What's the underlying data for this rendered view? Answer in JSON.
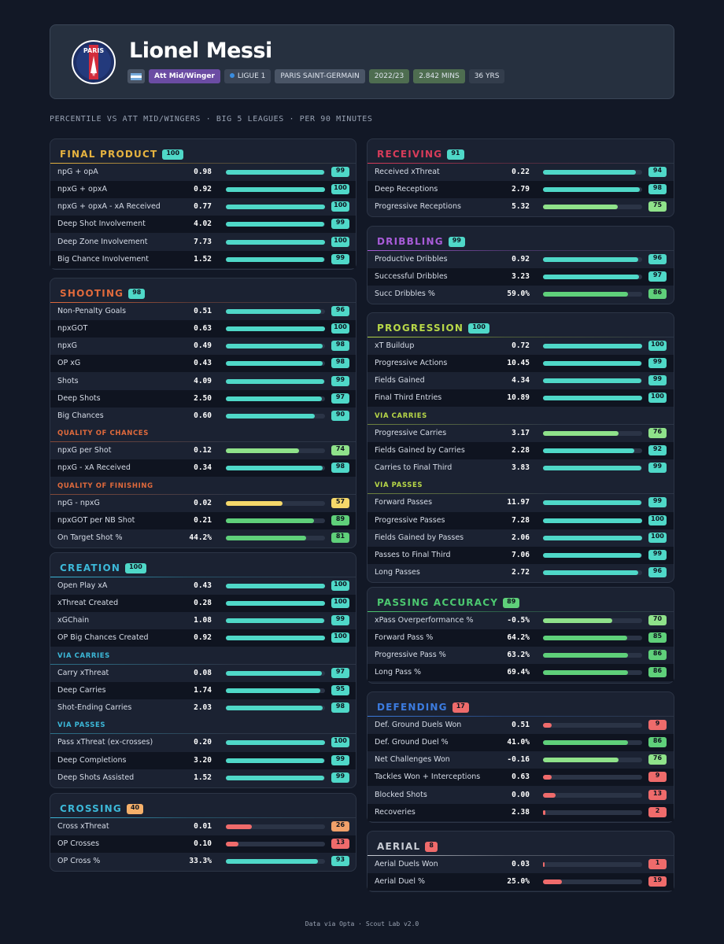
{
  "player": {
    "name": "Lionel Messi",
    "crest_text": "PARIS",
    "crest_sub": "SAINT-GERMAIN",
    "position": "Att Mid/Winger",
    "league": "LIGUE 1",
    "club": "PARIS SAINT-GERMAIN",
    "season": "2022/23",
    "minutes": "2.842 MINS",
    "age": "36 YRS"
  },
  "subtitle": "PERCENTILE VS ATT MID/WINGERS · BIG 5 LEAGUES · PER 90 MINUTES",
  "footer": "Data via Opta · Scout Lab v2.0",
  "colors": {
    "bar_high": "#4fd8c8",
    "bar_good": "#5fd07a",
    "bar_mid_good": "#8fe28a",
    "bar_mid": "#f5d86a",
    "bar_low": "#ef6b6b",
    "page_bg": "#121826",
    "panel_bg": "#1b2232"
  },
  "chart_data": {
    "type": "bar",
    "orientation": "horizontal",
    "title": "Lionel Messi percentile profile",
    "value_unit": "percentile",
    "xlim": [
      0,
      100
    ],
    "sections": [
      {
        "id": "final-product",
        "title": "FINAL PRODUCT",
        "score": 100,
        "color": "#e6b340",
        "rows": [
          {
            "label": "npG + opA",
            "value": "0.98",
            "percentile": 99
          },
          {
            "label": "npxG + opxA",
            "value": "0.92",
            "percentile": 100
          },
          {
            "label": "npxG + opxA - xA Received",
            "value": "0.77",
            "percentile": 100
          },
          {
            "label": "Deep Shot Involvement",
            "value": "4.02",
            "percentile": 99
          },
          {
            "label": "Deep Zone Involvement",
            "value": "7.73",
            "percentile": 100
          },
          {
            "label": "Big Chance Involvement",
            "value": "1.52",
            "percentile": 99
          }
        ]
      },
      {
        "id": "shooting",
        "title": "SHOOTING",
        "score": 98,
        "color": "#e06a3c",
        "rows": [
          {
            "label": "Non-Penalty Goals",
            "value": "0.51",
            "percentile": 96
          },
          {
            "label": "npxGOT",
            "value": "0.63",
            "percentile": 100
          },
          {
            "label": "npxG",
            "value": "0.49",
            "percentile": 98
          },
          {
            "label": "OP xG",
            "value": "0.43",
            "percentile": 98
          },
          {
            "label": "Shots",
            "value": "4.09",
            "percentile": 99
          },
          {
            "label": "Deep Shots",
            "value": "2.50",
            "percentile": 97
          },
          {
            "label": "Big Chances",
            "value": "0.60",
            "percentile": 90
          },
          {
            "subheader": "QUALITY OF CHANCES"
          },
          {
            "label": "npxG per Shot",
            "value": "0.12",
            "percentile": 74
          },
          {
            "label": "npxG - xA Received",
            "value": "0.34",
            "percentile": 98
          },
          {
            "subheader": "QUALITY OF FINISHING"
          },
          {
            "label": "npG - npxG",
            "value": "0.02",
            "percentile": 57
          },
          {
            "label": "npxGOT per NB Shot",
            "value": "0.21",
            "percentile": 89
          },
          {
            "label": "On Target Shot %",
            "value": "44.2%",
            "percentile": 81
          }
        ]
      },
      {
        "id": "creation",
        "title": "CREATION",
        "score": 100,
        "color": "#3cb8d8",
        "rows": [
          {
            "label": "Open Play xA",
            "value": "0.43",
            "percentile": 100
          },
          {
            "label": "xThreat Created",
            "value": "0.28",
            "percentile": 100
          },
          {
            "label": "xGChain",
            "value": "1.08",
            "percentile": 99
          },
          {
            "label": "OP Big Chances Created",
            "value": "0.92",
            "percentile": 100
          },
          {
            "subheader": "VIA CARRIES"
          },
          {
            "label": "Carry xThreat",
            "value": "0.08",
            "percentile": 97
          },
          {
            "label": "Deep Carries",
            "value": "1.74",
            "percentile": 95
          },
          {
            "label": "Shot-Ending Carries",
            "value": "2.03",
            "percentile": 98
          },
          {
            "subheader": "VIA PASSES"
          },
          {
            "label": "Pass xThreat (ex-crosses)",
            "value": "0.20",
            "percentile": 100
          },
          {
            "label": "Deep Completions",
            "value": "3.20",
            "percentile": 99
          },
          {
            "label": "Deep Shots Assisted",
            "value": "1.52",
            "percentile": 99
          }
        ]
      },
      {
        "id": "crossing",
        "title": "CROSSING",
        "score": 40,
        "color": "#3cb8d8",
        "rows": [
          {
            "label": "Cross xThreat",
            "value": "0.01",
            "percentile": 26
          },
          {
            "label": "OP Crosses",
            "value": "0.10",
            "percentile": 13
          },
          {
            "label": "OP Cross %",
            "value": "33.3%",
            "percentile": 93
          }
        ]
      },
      {
        "id": "receiving",
        "title": "RECEIVING",
        "score": 91,
        "color": "#d83c5a",
        "rows": [
          {
            "label": "Received xThreat",
            "value": "0.22",
            "percentile": 94
          },
          {
            "label": "Deep Receptions",
            "value": "2.79",
            "percentile": 98
          },
          {
            "label": "Progressive Receptions",
            "value": "5.32",
            "percentile": 75
          }
        ]
      },
      {
        "id": "dribbling",
        "title": "DRIBBLING",
        "score": 99,
        "color": "#a85cd8",
        "rows": [
          {
            "label": "Productive Dribbles",
            "value": "0.92",
            "percentile": 96
          },
          {
            "label": "Successful Dribbles",
            "value": "3.23",
            "percentile": 97
          },
          {
            "label": "Succ Dribbles %",
            "value": "59.0%",
            "percentile": 86
          }
        ]
      },
      {
        "id": "progression",
        "title": "PROGRESSION",
        "score": 100,
        "color": "#b8d848",
        "rows": [
          {
            "label": "xT Buildup",
            "value": "0.72",
            "percentile": 100
          },
          {
            "label": "Progressive Actions",
            "value": "10.45",
            "percentile": 99
          },
          {
            "label": "Fields Gained",
            "value": "4.34",
            "percentile": 99
          },
          {
            "label": "Final Third Entries",
            "value": "10.89",
            "percentile": 100
          },
          {
            "subheader": "VIA CARRIES"
          },
          {
            "label": "Progressive Carries",
            "value": "3.17",
            "percentile": 76
          },
          {
            "label": "Fields Gained by Carries",
            "value": "2.28",
            "percentile": 92
          },
          {
            "label": "Carries to Final Third",
            "value": "3.83",
            "percentile": 99
          },
          {
            "subheader": "VIA PASSES"
          },
          {
            "label": "Forward Passes",
            "value": "11.97",
            "percentile": 99
          },
          {
            "label": "Progressive Passes",
            "value": "7.28",
            "percentile": 100
          },
          {
            "label": "Fields Gained by Passes",
            "value": "2.06",
            "percentile": 100
          },
          {
            "label": "Passes to Final Third",
            "value": "7.06",
            "percentile": 99
          },
          {
            "label": "Long Passes",
            "value": "2.72",
            "percentile": 96
          }
        ]
      },
      {
        "id": "passing-accuracy",
        "title": "PASSING ACCURACY",
        "score": 89,
        "color": "#4cc870",
        "rows": [
          {
            "label": "xPass Overperformance %",
            "value": "-0.5%",
            "percentile": 70
          },
          {
            "label": "Forward Pass %",
            "value": "64.2%",
            "percentile": 85
          },
          {
            "label": "Progressive Pass %",
            "value": "63.2%",
            "percentile": 86
          },
          {
            "label": "Long Pass %",
            "value": "69.4%",
            "percentile": 86
          }
        ]
      },
      {
        "id": "defending",
        "title": "DEFENDING",
        "score": 17,
        "color": "#3c7ce0",
        "rows": [
          {
            "label": "Def. Ground Duels Won",
            "value": "0.51",
            "percentile": 9
          },
          {
            "label": "Def. Ground Duel %",
            "value": "41.0%",
            "percentile": 86
          },
          {
            "label": "Net Challenges Won",
            "value": "-0.16",
            "percentile": 76
          },
          {
            "label": "Tackles Won + Interceptions",
            "value": "0.63",
            "percentile": 9
          },
          {
            "label": "Blocked Shots",
            "value": "0.00",
            "percentile": 13
          },
          {
            "label": "Recoveries",
            "value": "2.38",
            "percentile": 2
          }
        ]
      },
      {
        "id": "aerial",
        "title": "AERIAL",
        "score": 8,
        "color": "#c8ccd4",
        "rows": [
          {
            "label": "Aerial Duels Won",
            "value": "0.03",
            "percentile": 1
          },
          {
            "label": "Aerial Duel %",
            "value": "25.0%",
            "percentile": 19
          }
        ]
      }
    ]
  }
}
